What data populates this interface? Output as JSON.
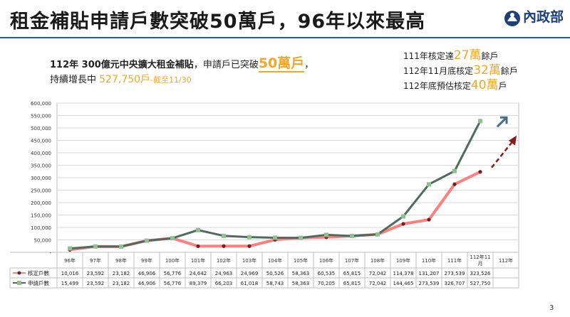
{
  "title": "租金補貼申請戶數突破50萬戶，96年以來最高",
  "logo": {
    "text": "內政部",
    "icon": "ministry-seal-icon"
  },
  "note": {
    "line1_prefix": "112年 300億元中央擴大租金補貼",
    "line1_middle": "，申請戶已突破",
    "line1_highlight": "50萬戶",
    "line1_suffix": "，",
    "line2_prefix": "持續增長中 ",
    "line2_value": "527,750戶",
    "line2_suffix": "-截至11/30"
  },
  "side_notes": [
    {
      "prefix": "111年核定達",
      "value": "27萬",
      "suffix": "餘戶"
    },
    {
      "prefix": "112年11月底核定",
      "value": "32萬",
      "suffix": "餘戶"
    },
    {
      "prefix": "112年底預估核定",
      "value": "40萬",
      "suffix": "戶"
    }
  ],
  "page_number": "3",
  "colors": {
    "approved": "#ff7f7f",
    "approved_marker": "#7a1f1f",
    "applied": "#4d6b5e",
    "applied_marker": "#90c090",
    "arrow_blue": "#4a6e8c",
    "arrow_red": "#8b1a1a",
    "rule": "#1e5ba8",
    "highlight": "#f5a623"
  },
  "chart_data": {
    "type": "line",
    "categories": [
      "96年",
      "97年",
      "98年",
      "99年",
      "100年",
      "101年",
      "102年",
      "103年",
      "104年",
      "105年",
      "106年",
      "107年",
      "108年",
      "109年",
      "110年",
      "111年",
      "112年11\n月",
      "112年"
    ],
    "ylim": [
      0,
      600000
    ],
    "yticks": [
      "-",
      "50,000",
      "100,000",
      "150,000",
      "200,000",
      "250,000",
      "300,000",
      "350,000",
      "400,000",
      "450,000",
      "500,000",
      "550,000",
      "600,000"
    ],
    "series": [
      {
        "name": "核定戶數",
        "values": [
          10016,
          23592,
          23182,
          46906,
          56776,
          24642,
          24963,
          24969,
          50526,
          58363,
          60535,
          65815,
          72042,
          114378,
          131207,
          273539,
          323526,
          null
        ],
        "labels": [
          "10,016",
          "23,592",
          "23,182",
          "46,906",
          "56,776",
          "24,642",
          "24,963",
          "24,969",
          "50,526",
          "58,363",
          "60,535",
          "65,815",
          "72,042",
          "114,378",
          "131,207",
          "273,539",
          "323,526",
          ""
        ]
      },
      {
        "name": "申請戶數",
        "values": [
          15499,
          23592,
          23182,
          46906,
          56776,
          89379,
          66203,
          61018,
          58743,
          58363,
          70205,
          65815,
          72042,
          144465,
          273539,
          326707,
          527750,
          null
        ],
        "labels": [
          "15,499",
          "23,592",
          "23,182",
          "46,906",
          "56,776",
          "89,379",
          "66,203",
          "61,018",
          "58,743",
          "58,363",
          "70,205",
          "65,815",
          "72,042",
          "144,465",
          "273,539",
          "326,707",
          "527,750",
          ""
        ]
      }
    ],
    "grid": true,
    "legend": "table-left"
  }
}
